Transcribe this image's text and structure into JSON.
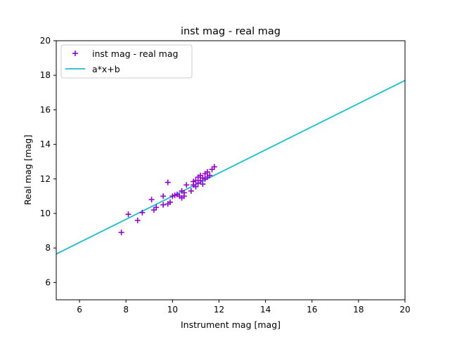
{
  "chart_data": {
    "type": "scatter",
    "title": "inst mag - real mag",
    "xlabel": "Instrument mag [mag]",
    "ylabel": "Real mag [mag]",
    "xlim": [
      5,
      20
    ],
    "ylim": [
      5,
      20
    ],
    "xticks": [
      6,
      8,
      10,
      12,
      14,
      16,
      18,
      20
    ],
    "yticks": [
      6,
      8,
      10,
      12,
      14,
      16,
      18,
      20
    ],
    "grid": false,
    "legend_position": "upper-left",
    "series": [
      {
        "name": "inst mag - real mag",
        "kind": "scatter",
        "marker": "plus",
        "color": "#9400d3",
        "points": [
          [
            7.8,
            8.9
          ],
          [
            8.1,
            9.95
          ],
          [
            8.5,
            9.6
          ],
          [
            8.7,
            10.05
          ],
          [
            9.1,
            10.8
          ],
          [
            9.2,
            10.2
          ],
          [
            9.3,
            10.35
          ],
          [
            9.6,
            11.0
          ],
          [
            9.6,
            10.5
          ],
          [
            9.8,
            11.8
          ],
          [
            9.8,
            10.55
          ],
          [
            9.9,
            10.65
          ],
          [
            10.0,
            11.0
          ],
          [
            10.1,
            11.05
          ],
          [
            10.2,
            11.1
          ],
          [
            10.3,
            11.0
          ],
          [
            10.4,
            11.3
          ],
          [
            10.4,
            10.9
          ],
          [
            10.5,
            11.2
          ],
          [
            10.5,
            11.0
          ],
          [
            10.6,
            11.65
          ],
          [
            10.8,
            11.3
          ],
          [
            10.9,
            11.85
          ],
          [
            10.9,
            11.65
          ],
          [
            11.0,
            11.9
          ],
          [
            11.0,
            11.55
          ],
          [
            11.1,
            12.1
          ],
          [
            11.1,
            11.75
          ],
          [
            11.2,
            12.2
          ],
          [
            11.2,
            11.9
          ],
          [
            11.3,
            12.05
          ],
          [
            11.3,
            11.7
          ],
          [
            11.4,
            12.3
          ],
          [
            11.4,
            12.0
          ],
          [
            11.5,
            12.4
          ],
          [
            11.5,
            12.1
          ],
          [
            11.6,
            12.2
          ],
          [
            11.7,
            12.55
          ],
          [
            11.8,
            12.7
          ]
        ]
      },
      {
        "name": "a*x+b",
        "kind": "line",
        "color": "#17becf",
        "points": [
          [
            5,
            7.65
          ],
          [
            20,
            17.7
          ]
        ]
      }
    ]
  }
}
